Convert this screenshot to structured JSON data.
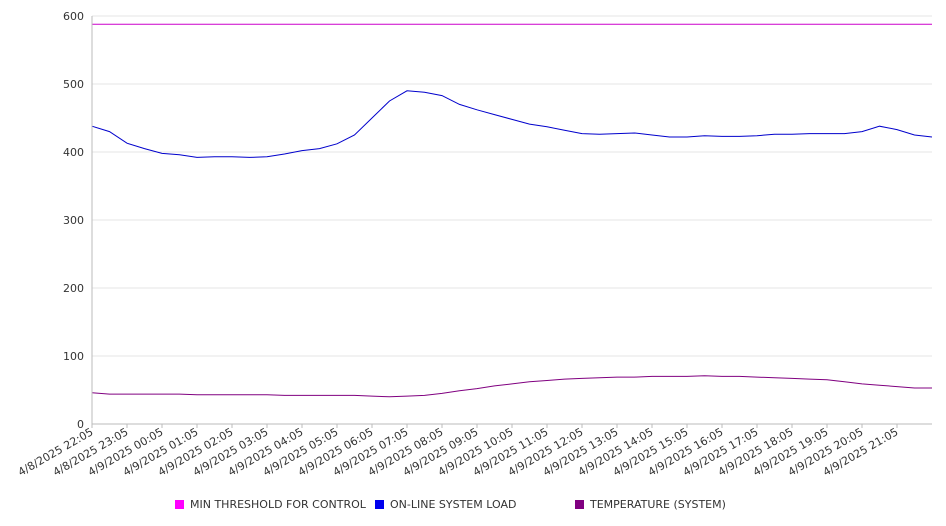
{
  "chart_data": {
    "type": "line",
    "title": "",
    "xlabel": "",
    "ylabel": "",
    "ylim": [
      0,
      600
    ],
    "yticks": [
      0,
      100,
      200,
      300,
      400,
      500,
      600
    ],
    "grid": true,
    "legend_position": "bottom",
    "xticks": [
      "4/8/2025 22:05",
      "4/8/2025 23:05",
      "4/9/2025 00:05",
      "4/9/2025 01:05",
      "4/9/2025 02:05",
      "4/9/2025 03:05",
      "4/9/2025 04:05",
      "4/9/2025 05:05",
      "4/9/2025 06:05",
      "4/9/2025 07:05",
      "4/9/2025 08:05",
      "4/9/2025 09:05",
      "4/9/2025 10:05",
      "4/9/2025 11:05",
      "4/9/2025 12:05",
      "4/9/2025 13:05",
      "4/9/2025 14:05",
      "4/9/2025 15:05",
      "4/9/2025 16:05",
      "4/9/2025 17:05",
      "4/9/2025 18:05",
      "4/9/2025 19:05",
      "4/9/2025 20:05",
      "4/9/2025 21:05"
    ],
    "x": [
      "4/8/2025 22:05",
      "4/8/2025 22:35",
      "4/8/2025 23:05",
      "4/8/2025 23:35",
      "4/9/2025 00:05",
      "4/9/2025 00:35",
      "4/9/2025 01:05",
      "4/9/2025 01:35",
      "4/9/2025 02:05",
      "4/9/2025 02:35",
      "4/9/2025 03:05",
      "4/9/2025 03:35",
      "4/9/2025 04:05",
      "4/9/2025 04:35",
      "4/9/2025 05:05",
      "4/9/2025 05:35",
      "4/9/2025 06:05",
      "4/9/2025 06:35",
      "4/9/2025 07:05",
      "4/9/2025 07:35",
      "4/9/2025 08:05",
      "4/9/2025 08:35",
      "4/9/2025 09:05",
      "4/9/2025 09:35",
      "4/9/2025 10:05",
      "4/9/2025 10:35",
      "4/9/2025 11:05",
      "4/9/2025 11:35",
      "4/9/2025 12:05",
      "4/9/2025 12:35",
      "4/9/2025 13:05",
      "4/9/2025 13:35",
      "4/9/2025 14:05",
      "4/9/2025 14:35",
      "4/9/2025 15:05",
      "4/9/2025 15:35",
      "4/9/2025 16:05",
      "4/9/2025 16:35",
      "4/9/2025 17:05",
      "4/9/2025 17:35",
      "4/9/2025 18:05",
      "4/9/2025 18:35",
      "4/9/2025 19:05",
      "4/9/2025 19:35",
      "4/9/2025 20:05",
      "4/9/2025 20:35",
      "4/9/2025 21:05",
      "4/9/2025 21:35",
      "4/9/2025 22:00"
    ],
    "series": [
      {
        "name": "MIN THRESHOLD FOR CONTROL",
        "color": "#CC00CC",
        "values": [
          588,
          588,
          588,
          588,
          588,
          588,
          588,
          588,
          588,
          588,
          588,
          588,
          588,
          588,
          588,
          588,
          588,
          588,
          588,
          588,
          588,
          588,
          588,
          588,
          588,
          588,
          588,
          588,
          588,
          588,
          588,
          588,
          588,
          588,
          588,
          588,
          588,
          588,
          588,
          588,
          588,
          588,
          588,
          588,
          588,
          588,
          588,
          588,
          588
        ]
      },
      {
        "name": "ON-LINE SYSTEM LOAD",
        "color": "#0000CC",
        "values": [
          438,
          430,
          413,
          405,
          398,
          396,
          392,
          393,
          393,
          392,
          393,
          397,
          402,
          405,
          412,
          425,
          450,
          475,
          490,
          488,
          483,
          470,
          462,
          455,
          448,
          441,
          437,
          432,
          427,
          426,
          427,
          428,
          425,
          422,
          422,
          424,
          423,
          423,
          424,
          426,
          426,
          427,
          427,
          427,
          430,
          438,
          433,
          425,
          422
        ]
      },
      {
        "name": "TEMPERATURE (SYSTEM)",
        "color": "#800080",
        "values": [
          46,
          44,
          44,
          44,
          44,
          44,
          43,
          43,
          43,
          43,
          43,
          42,
          42,
          42,
          42,
          42,
          41,
          40,
          41,
          42,
          45,
          49,
          52,
          56,
          59,
          62,
          64,
          66,
          67,
          68,
          69,
          69,
          70,
          70,
          70,
          71,
          70,
          70,
          69,
          68,
          67,
          66,
          65,
          62,
          59,
          57,
          55,
          53,
          53
        ]
      }
    ]
  },
  "legend": [
    {
      "label": "MIN THRESHOLD FOR CONTROL",
      "color": "#FF00FF"
    },
    {
      "label": "ON-LINE SYSTEM LOAD",
      "color": "#0000EE"
    },
    {
      "label": "TEMPERATURE (SYSTEM)",
      "color": "#800080"
    }
  ]
}
